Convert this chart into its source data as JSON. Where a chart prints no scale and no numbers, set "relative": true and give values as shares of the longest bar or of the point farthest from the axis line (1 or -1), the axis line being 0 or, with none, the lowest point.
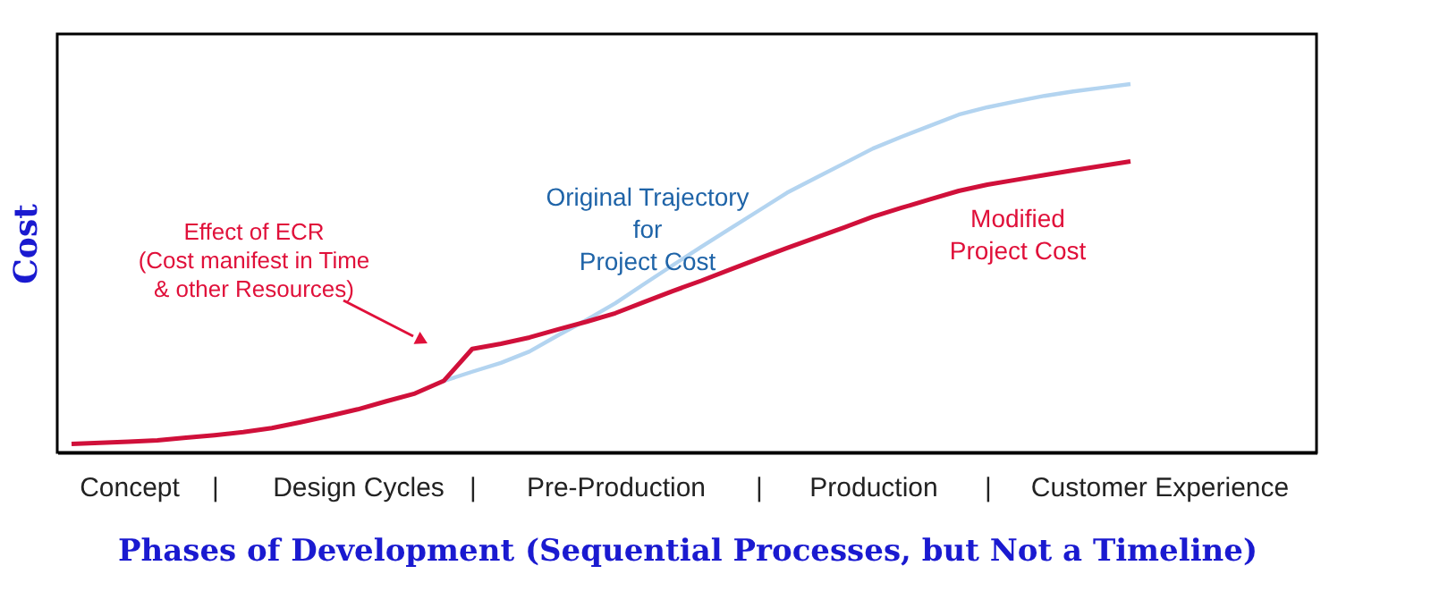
{
  "chart_data": {
    "type": "line",
    "relative": true,
    "xlabel": "Phases of Development  (Sequential Processes, but Not a Timeline)",
    "ylabel": "Cost",
    "categories": [
      null,
      null,
      "Concept",
      null,
      null,
      "|",
      null,
      null,
      null,
      null,
      "Design Cycles",
      null,
      null,
      null,
      "|",
      null,
      null,
      null,
      null,
      "Pre-Production",
      null,
      null,
      null,
      null,
      "|",
      null,
      null,
      null,
      "Production",
      null,
      null,
      null,
      "|",
      null,
      null,
      null,
      null,
      null,
      "Customer Experience",
      null,
      null,
      null,
      null,
      null
    ],
    "grid": false,
    "marker": "none",
    "line_style": "solid",
    "series": [
      {
        "color": "#b3d4f0",
        "values": [
          null,
          null,
          null,
          null,
          null,
          null,
          null,
          null,
          null,
          null,
          null,
          null,
          null,
          0.194,
          0.219,
          0.243,
          0.274,
          0.318,
          0.36,
          0.405,
          0.457,
          0.508,
          0.558,
          0.607,
          0.656,
          0.705,
          0.745,
          0.785,
          0.825,
          0.857,
          0.887,
          0.917,
          0.937,
          0.953,
          0.968,
          0.98,
          0.99,
          1.0,
          null,
          null,
          null,
          null,
          null,
          null
        ]
      },
      {
        "color": "#d0103a",
        "values": [
          0.023,
          0.026,
          0.029,
          0.033,
          0.04,
          0.047,
          0.055,
          0.066,
          0.082,
          0.099,
          0.117,
          0.139,
          0.16,
          0.194,
          0.281,
          0.295,
          0.312,
          0.334,
          0.355,
          0.378,
          0.408,
          0.438,
          0.466,
          0.496,
          0.526,
          0.555,
          0.583,
          0.611,
          0.64,
          0.664,
          0.687,
          0.71,
          0.727,
          0.74,
          0.753,
          0.766,
          0.778,
          0.79,
          null,
          null,
          null,
          null,
          null,
          null
        ]
      }
    ],
    "annotations": [
      "Original Trajectory\nfor\nProject Cost",
      "Modified\nProject Cost",
      "Effect of ECR\n(Cost manifest in Time\n& other Resources)"
    ]
  }
}
